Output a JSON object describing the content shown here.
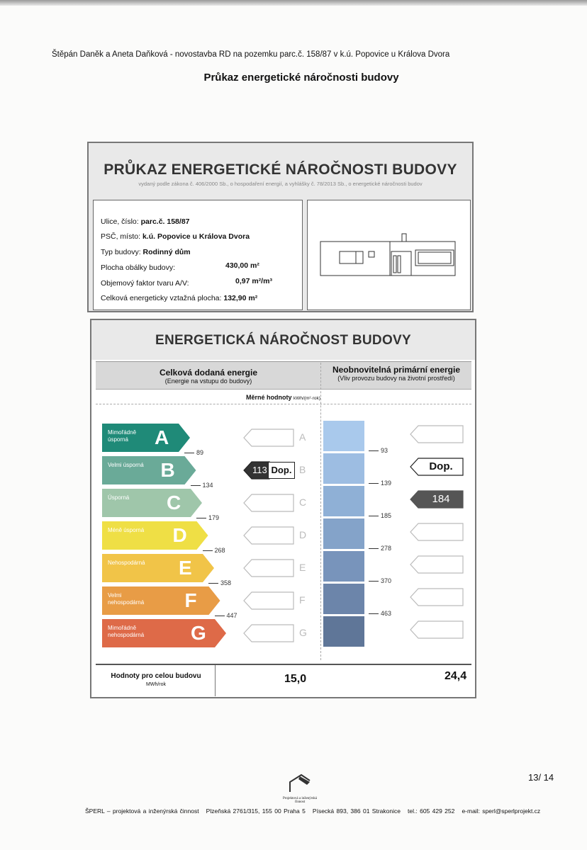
{
  "header": "Štěpán Daněk a Aneta Daňková - novostavba RD na pozemku parc.č. 158/87 v k.ú. Popovice u Králova Dvora",
  "doc_title": "Průkaz energetické náročnosti budovy",
  "card": {
    "title": "PRŮKAZ ENERGETICKÉ NÁROČNOSTI BUDOVY",
    "subtitle": "vydaný podle zákona č. 406/2000 Sb., o hospodaření energií, a vyhlášky č. 78/2013 Sb., o energetické náročnosti budov",
    "street_label": "Ulice, číslo:",
    "street": "parc.č. 158/87",
    "city_label": "PSČ, místo:",
    "city": "k.ú. Popovice u Králova Dvora",
    "type_label": "Typ budovy:",
    "type": "Rodinný dům",
    "envelope_label": "Plocha obálky budovy:",
    "envelope": "430,00 m²",
    "shape_label": "Objemový faktor tvaru A/V:",
    "shape": "0,97 m²/m³",
    "area_label": "Celková energeticky vztažná plocha:",
    "area": "132,90 m²"
  },
  "rating": {
    "title": "ENERGETICKÁ NÁROČNOST BUDOVY",
    "left_head": "Celková dodaná energie",
    "left_sub": "(Energie na vstupu do budovy)",
    "right_head": "Neobnovitelná primární energie",
    "right_sub": "(Vliv provozu budovy na životní prostředí)",
    "unit_label": "Měrné hodnoty",
    "unit": "kWh/(m²·rok)",
    "classes": [
      {
        "letter": "A",
        "label": "Mimořádně úsporná",
        "color": "#1f8a78"
      },
      {
        "letter": "B",
        "label": "Velmi úsporná",
        "color": "#6aaa98"
      },
      {
        "letter": "C",
        "label": "Úsporná",
        "color": "#9fc6aa"
      },
      {
        "letter": "D",
        "label": "Méně úsporná",
        "color": "#efdf45"
      },
      {
        "letter": "E",
        "label": "Nehospodárná",
        "color": "#f1c448"
      },
      {
        "letter": "F",
        "label": "Velmi nehospodárná",
        "color": "#e89c46"
      },
      {
        "letter": "G",
        "label": "Mimořádně nehospodárná",
        "color": "#de6a48"
      }
    ],
    "left_thresholds": [
      "89",
      "134",
      "179",
      "268",
      "358",
      "447"
    ],
    "right_thresholds": [
      "93",
      "139",
      "185",
      "278",
      "370",
      "463"
    ],
    "blue_colors": [
      "#a9c9ec",
      "#9dbde2",
      "#8fb0d6",
      "#84a3c9",
      "#7894bb",
      "#6c85aa",
      "#5f7698"
    ],
    "left_value": "113",
    "left_value_class": "B",
    "left_ref": "Dop.",
    "left_ref_class": "B",
    "right_value": "184",
    "right_value_class": "C",
    "right_ref": "Dop.",
    "right_ref_class": "B",
    "total_label": "Hodnoty pro celou budovu",
    "total_unit": "MWh/rok",
    "total_left": "15,0",
    "total_right": "24,4"
  },
  "footer": {
    "logo_text": "Projektová a inženýrská činnost",
    "page": "13/ 14",
    "line": "ŠPERL – projektová a inženýrská činnost   Plzeňská 2761/315, 155 00 Praha 5   Písecká 893, 386 01 Strakonice   tel.: 605 429 252   e-mail: sperl@sperlprojekt.cz"
  }
}
